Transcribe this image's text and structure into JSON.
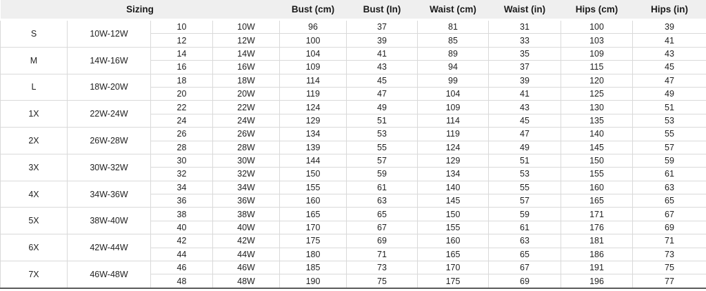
{
  "colors": {
    "header_bg": "#efefef",
    "grid_border": "#d9d9d9",
    "bottom_border": "#595959",
    "text": "#1f1f1f",
    "background": "#ffffff"
  },
  "table": {
    "sizing_header": "Sizing",
    "measure_headers": [
      "Bust (cm)",
      "Bust (In)",
      "Waist (cm)",
      "Waist (in)",
      "Hips (cm)",
      "Hips (in)"
    ],
    "groups": [
      {
        "size": "S",
        "range": "10W-12W",
        "rows": [
          {
            "size_num": "10",
            "size_w": "10W",
            "bust_cm": "96",
            "bust_in": "37",
            "waist_cm": "81",
            "waist_in": "31",
            "hips_cm": "100",
            "hips_in": "39"
          },
          {
            "size_num": "12",
            "size_w": "12W",
            "bust_cm": "100",
            "bust_in": "39",
            "waist_cm": "85",
            "waist_in": "33",
            "hips_cm": "103",
            "hips_in": "41"
          }
        ]
      },
      {
        "size": "M",
        "range": "14W-16W",
        "rows": [
          {
            "size_num": "14",
            "size_w": "14W",
            "bust_cm": "104",
            "bust_in": "41",
            "waist_cm": "89",
            "waist_in": "35",
            "hips_cm": "109",
            "hips_in": "43"
          },
          {
            "size_num": "16",
            "size_w": "16W",
            "bust_cm": "109",
            "bust_in": "43",
            "waist_cm": "94",
            "waist_in": "37",
            "hips_cm": "115",
            "hips_in": "45"
          }
        ]
      },
      {
        "size": "L",
        "range": "18W-20W",
        "rows": [
          {
            "size_num": "18",
            "size_w": "18W",
            "bust_cm": "114",
            "bust_in": "45",
            "waist_cm": "99",
            "waist_in": "39",
            "hips_cm": "120",
            "hips_in": "47"
          },
          {
            "size_num": "20",
            "size_w": "20W",
            "bust_cm": "119",
            "bust_in": "47",
            "waist_cm": "104",
            "waist_in": "41",
            "hips_cm": "125",
            "hips_in": "49"
          }
        ]
      },
      {
        "size": "1X",
        "range": "22W-24W",
        "rows": [
          {
            "size_num": "22",
            "size_w": "22W",
            "bust_cm": "124",
            "bust_in": "49",
            "waist_cm": "109",
            "waist_in": "43",
            "hips_cm": "130",
            "hips_in": "51"
          },
          {
            "size_num": "24",
            "size_w": "24W",
            "bust_cm": "129",
            "bust_in": "51",
            "waist_cm": "114",
            "waist_in": "45",
            "hips_cm": "135",
            "hips_in": "53"
          }
        ]
      },
      {
        "size": "2X",
        "range": "26W-28W",
        "rows": [
          {
            "size_num": "26",
            "size_w": "26W",
            "bust_cm": "134",
            "bust_in": "53",
            "waist_cm": "119",
            "waist_in": "47",
            "hips_cm": "140",
            "hips_in": "55"
          },
          {
            "size_num": "28",
            "size_w": "28W",
            "bust_cm": "139",
            "bust_in": "55",
            "waist_cm": "124",
            "waist_in": "49",
            "hips_cm": "145",
            "hips_in": "57"
          }
        ]
      },
      {
        "size": "3X",
        "range": "30W-32W",
        "rows": [
          {
            "size_num": "30",
            "size_w": "30W",
            "bust_cm": "144",
            "bust_in": "57",
            "waist_cm": "129",
            "waist_in": "51",
            "hips_cm": "150",
            "hips_in": "59"
          },
          {
            "size_num": "32",
            "size_w": "32W",
            "bust_cm": "150",
            "bust_in": "59",
            "waist_cm": "134",
            "waist_in": "53",
            "hips_cm": "155",
            "hips_in": "61"
          }
        ]
      },
      {
        "size": "4X",
        "range": "34W-36W",
        "rows": [
          {
            "size_num": "34",
            "size_w": "34W",
            "bust_cm": "155",
            "bust_in": "61",
            "waist_cm": "140",
            "waist_in": "55",
            "hips_cm": "160",
            "hips_in": "63"
          },
          {
            "size_num": "36",
            "size_w": "36W",
            "bust_cm": "160",
            "bust_in": "63",
            "waist_cm": "145",
            "waist_in": "57",
            "hips_cm": "165",
            "hips_in": "65"
          }
        ]
      },
      {
        "size": "5X",
        "range": "38W-40W",
        "rows": [
          {
            "size_num": "38",
            "size_w": "38W",
            "bust_cm": "165",
            "bust_in": "65",
            "waist_cm": "150",
            "waist_in": "59",
            "hips_cm": "171",
            "hips_in": "67"
          },
          {
            "size_num": "40",
            "size_w": "40W",
            "bust_cm": "170",
            "bust_in": "67",
            "waist_cm": "155",
            "waist_in": "61",
            "hips_cm": "176",
            "hips_in": "69"
          }
        ]
      },
      {
        "size": "6X",
        "range": "42W-44W",
        "rows": [
          {
            "size_num": "42",
            "size_w": "42W",
            "bust_cm": "175",
            "bust_in": "69",
            "waist_cm": "160",
            "waist_in": "63",
            "hips_cm": "181",
            "hips_in": "71"
          },
          {
            "size_num": "44",
            "size_w": "44W",
            "bust_cm": "180",
            "bust_in": "71",
            "waist_cm": "165",
            "waist_in": "65",
            "hips_cm": "186",
            "hips_in": "73"
          }
        ]
      },
      {
        "size": "7X",
        "range": "46W-48W",
        "rows": [
          {
            "size_num": "46",
            "size_w": "46W",
            "bust_cm": "185",
            "bust_in": "73",
            "waist_cm": "170",
            "waist_in": "67",
            "hips_cm": "191",
            "hips_in": "75"
          },
          {
            "size_num": "48",
            "size_w": "48W",
            "bust_cm": "190",
            "bust_in": "75",
            "waist_cm": "175",
            "waist_in": "69",
            "hips_cm": "196",
            "hips_in": "77"
          }
        ]
      }
    ]
  },
  "chart_data": {
    "type": "table",
    "title": "Sizing",
    "columns": [
      "Sizing (letter)",
      "Sizing (W range)",
      "Size",
      "Size W",
      "Bust (cm)",
      "Bust (In)",
      "Waist (cm)",
      "Waist (in)",
      "Hips (cm)",
      "Hips (in)"
    ],
    "rows": [
      [
        "S",
        "10W-12W",
        "10",
        "10W",
        96,
        37,
        81,
        31,
        100,
        39
      ],
      [
        "S",
        "10W-12W",
        "12",
        "12W",
        100,
        39,
        85,
        33,
        103,
        41
      ],
      [
        "M",
        "14W-16W",
        "14",
        "14W",
        104,
        41,
        89,
        35,
        109,
        43
      ],
      [
        "M",
        "14W-16W",
        "16",
        "16W",
        109,
        43,
        94,
        37,
        115,
        45
      ],
      [
        "L",
        "18W-20W",
        "18",
        "18W",
        114,
        45,
        99,
        39,
        120,
        47
      ],
      [
        "L",
        "18W-20W",
        "20",
        "20W",
        119,
        47,
        104,
        41,
        125,
        49
      ],
      [
        "1X",
        "22W-24W",
        "22",
        "22W",
        124,
        49,
        109,
        43,
        130,
        51
      ],
      [
        "1X",
        "22W-24W",
        "24",
        "24W",
        129,
        51,
        114,
        45,
        135,
        53
      ],
      [
        "2X",
        "26W-28W",
        "26",
        "26W",
        134,
        53,
        119,
        47,
        140,
        55
      ],
      [
        "2X",
        "26W-28W",
        "28",
        "28W",
        139,
        55,
        124,
        49,
        145,
        57
      ],
      [
        "3X",
        "30W-32W",
        "30",
        "30W",
        144,
        57,
        129,
        51,
        150,
        59
      ],
      [
        "3X",
        "30W-32W",
        "32",
        "32W",
        150,
        59,
        134,
        53,
        155,
        61
      ],
      [
        "4X",
        "34W-36W",
        "34",
        "34W",
        155,
        61,
        140,
        55,
        160,
        63
      ],
      [
        "4X",
        "34W-36W",
        "36",
        "36W",
        160,
        63,
        145,
        57,
        165,
        65
      ],
      [
        "5X",
        "38W-40W",
        "38",
        "38W",
        165,
        65,
        150,
        59,
        171,
        67
      ],
      [
        "5X",
        "38W-40W",
        "40",
        "40W",
        170,
        67,
        155,
        61,
        176,
        69
      ],
      [
        "6X",
        "42W-44W",
        "42",
        "42W",
        175,
        69,
        160,
        63,
        181,
        71
      ],
      [
        "6X",
        "42W-44W",
        "44",
        "44W",
        180,
        71,
        165,
        65,
        186,
        73
      ],
      [
        "7X",
        "46W-48W",
        "46",
        "46W",
        185,
        73,
        170,
        67,
        191,
        75
      ],
      [
        "7X",
        "46W-48W",
        "48",
        "48W",
        190,
        75,
        175,
        69,
        196,
        77
      ]
    ]
  }
}
